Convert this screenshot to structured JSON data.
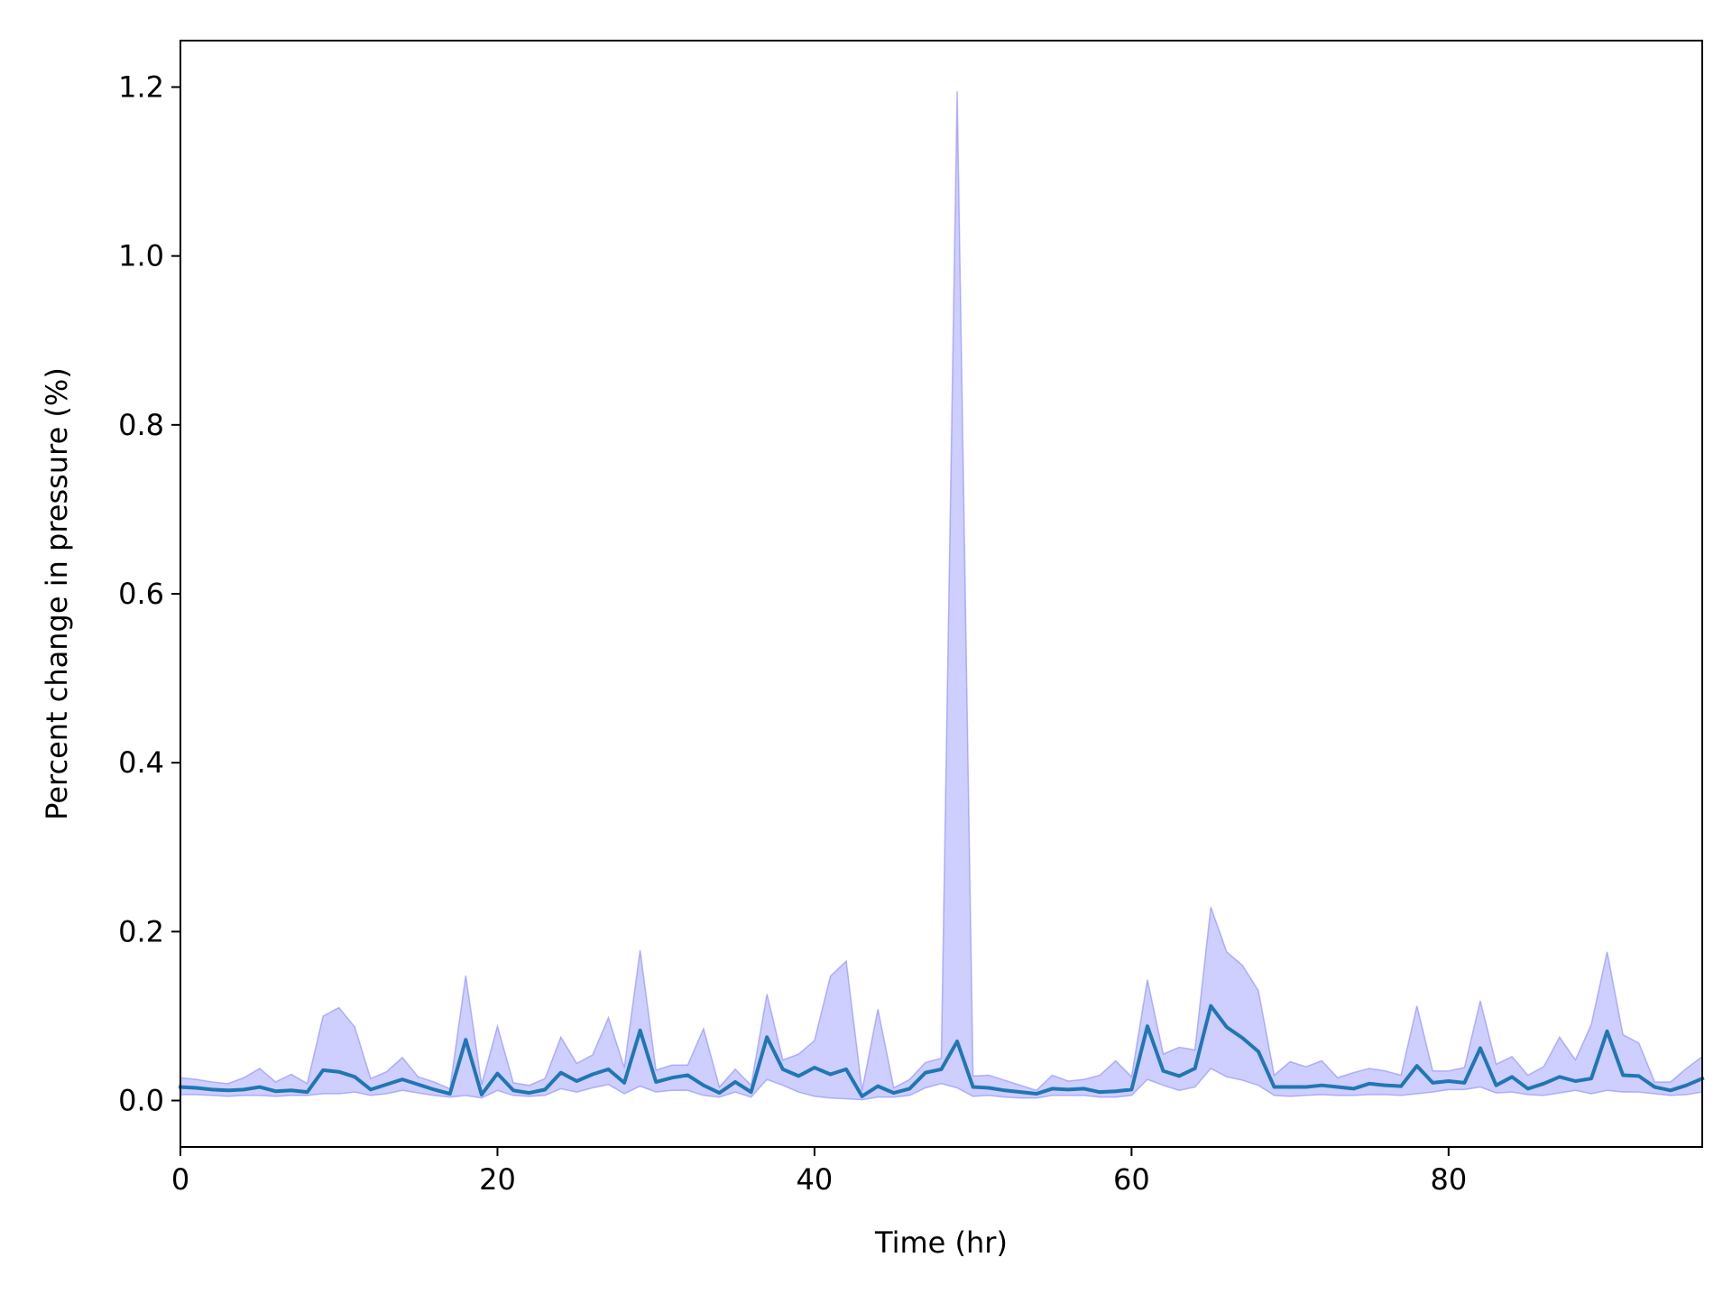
{
  "chart_data": {
    "type": "line",
    "title": "",
    "xlabel": "Time (hr)",
    "ylabel": "Percent change in pressure (%)",
    "xlim": [
      0,
      96
    ],
    "ylim": [
      -0.055,
      1.255
    ],
    "grid": false,
    "legend": "none",
    "x_ticks": [
      0,
      20,
      40,
      60,
      80
    ],
    "x_tick_labels": [
      "0",
      "20",
      "40",
      "60",
      "80"
    ],
    "y_ticks": [
      0.0,
      0.2,
      0.4,
      0.6,
      0.8,
      1.0,
      1.2
    ],
    "y_tick_labels": [
      "0.0",
      "0.2",
      "0.4",
      "0.6",
      "0.8",
      "1.0",
      "1.2"
    ],
    "colors": {
      "line": "#1f77b4",
      "band_fill": "#9999ff",
      "band_edge": "#8080ff",
      "axes": "#000000"
    },
    "x": [
      0,
      1,
      2,
      3,
      4,
      5,
      6,
      7,
      8,
      9,
      10,
      11,
      12,
      13,
      14,
      15,
      16,
      17,
      18,
      19,
      20,
      21,
      22,
      23,
      24,
      25,
      26,
      27,
      28,
      29,
      30,
      31,
      32,
      33,
      34,
      35,
      36,
      37,
      38,
      39,
      40,
      41,
      42,
      43,
      44,
      45,
      46,
      47,
      48,
      49,
      50,
      51,
      52,
      53,
      54,
      55,
      56,
      57,
      58,
      59,
      60,
      61,
      62,
      63,
      64,
      65,
      66,
      67,
      68,
      69,
      70,
      71,
      72,
      73,
      74,
      75,
      76,
      77,
      78,
      79,
      80,
      81,
      82,
      83,
      84,
      85,
      86,
      87,
      88,
      89,
      90,
      91,
      92,
      93,
      94,
      95,
      96
    ],
    "series": [
      {
        "values": [
          0.016,
          0.015,
          0.013,
          0.012,
          0.013,
          0.016,
          0.011,
          0.012,
          0.01,
          0.036,
          0.034,
          0.028,
          0.013,
          0.019,
          0.025,
          0.019,
          0.013,
          0.008,
          0.072,
          0.007,
          0.032,
          0.012,
          0.009,
          0.013,
          0.033,
          0.023,
          0.031,
          0.037,
          0.021,
          0.083,
          0.022,
          0.027,
          0.03,
          0.018,
          0.009,
          0.022,
          0.01,
          0.075,
          0.037,
          0.029,
          0.039,
          0.031,
          0.037,
          0.005,
          0.017,
          0.009,
          0.014,
          0.033,
          0.037,
          0.07,
          0.016,
          0.015,
          0.012,
          0.01,
          0.008,
          0.014,
          0.013,
          0.014,
          0.01,
          0.011,
          0.013,
          0.088,
          0.035,
          0.029,
          0.038,
          0.112,
          0.087,
          0.074,
          0.058,
          0.016,
          0.016,
          0.016,
          0.018,
          0.016,
          0.014,
          0.02,
          0.018,
          0.017,
          0.041,
          0.021,
          0.023,
          0.021,
          0.062,
          0.018,
          0.028,
          0.014,
          0.02,
          0.028,
          0.023,
          0.026,
          0.082,
          0.03,
          0.029,
          0.016,
          0.012,
          0.018,
          0.026
        ]
      }
    ],
    "band": {
      "upper": [
        0.027,
        0.025,
        0.022,
        0.02,
        0.027,
        0.038,
        0.022,
        0.031,
        0.02,
        0.1,
        0.11,
        0.087,
        0.026,
        0.034,
        0.051,
        0.028,
        0.022,
        0.014,
        0.148,
        0.019,
        0.088,
        0.021,
        0.018,
        0.026,
        0.075,
        0.044,
        0.054,
        0.098,
        0.039,
        0.178,
        0.036,
        0.042,
        0.042,
        0.085,
        0.016,
        0.037,
        0.018,
        0.126,
        0.048,
        0.055,
        0.071,
        0.147,
        0.165,
        0.012,
        0.108,
        0.015,
        0.025,
        0.045,
        0.05,
        1.195,
        0.029,
        0.03,
        0.024,
        0.018,
        0.012,
        0.03,
        0.023,
        0.025,
        0.03,
        0.047,
        0.028,
        0.143,
        0.055,
        0.063,
        0.06,
        0.229,
        0.176,
        0.16,
        0.13,
        0.03,
        0.046,
        0.04,
        0.047,
        0.027,
        0.033,
        0.038,
        0.035,
        0.03,
        0.112,
        0.035,
        0.035,
        0.039,
        0.118,
        0.043,
        0.052,
        0.03,
        0.04,
        0.075,
        0.048,
        0.09,
        0.176,
        0.078,
        0.068,
        0.022,
        0.022,
        0.038,
        0.052
      ],
      "lower": [
        0.007,
        0.007,
        0.006,
        0.005,
        0.006,
        0.006,
        0.005,
        0.006,
        0.006,
        0.008,
        0.008,
        0.01,
        0.006,
        0.008,
        0.012,
        0.009,
        0.006,
        0.004,
        0.006,
        0.003,
        0.012,
        0.006,
        0.005,
        0.006,
        0.014,
        0.01,
        0.015,
        0.019,
        0.008,
        0.017,
        0.01,
        0.012,
        0.012,
        0.006,
        0.004,
        0.01,
        0.004,
        0.025,
        0.018,
        0.01,
        0.005,
        0.003,
        0.002,
        0.001,
        0.004,
        0.004,
        0.006,
        0.015,
        0.02,
        0.015,
        0.005,
        0.006,
        0.004,
        0.003,
        0.003,
        0.006,
        0.006,
        0.006,
        0.004,
        0.004,
        0.006,
        0.025,
        0.018,
        0.012,
        0.016,
        0.038,
        0.028,
        0.024,
        0.018,
        0.006,
        0.005,
        0.006,
        0.007,
        0.006,
        0.006,
        0.007,
        0.007,
        0.006,
        0.008,
        0.01,
        0.013,
        0.013,
        0.016,
        0.009,
        0.01,
        0.007,
        0.006,
        0.009,
        0.012,
        0.008,
        0.012,
        0.01,
        0.01,
        0.008,
        0.006,
        0.007,
        0.01
      ]
    }
  }
}
